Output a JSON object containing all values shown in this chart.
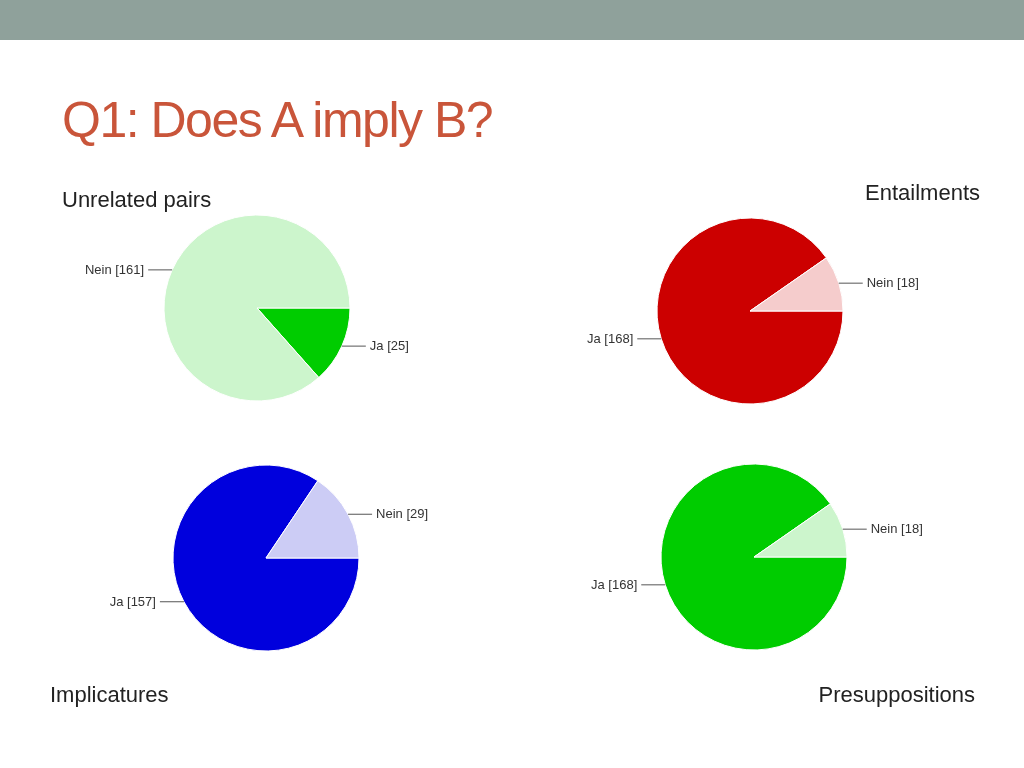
{
  "chart_data": [
    {
      "type": "pie",
      "title": "Unrelated pairs",
      "annotations": [
        "Q1: Does A imply B?"
      ],
      "categories": [
        "Ja",
        "Nein"
      ],
      "values": [
        25,
        161
      ],
      "colors": [
        "#00cc00",
        "#ccf5cc"
      ],
      "value_labels": [
        "[25]",
        "[161]"
      ]
    },
    {
      "type": "pie",
      "title": "Entailments",
      "categories": [
        "Ja",
        "Nein"
      ],
      "values": [
        168,
        18
      ],
      "colors": [
        "#cc0000",
        "#f5cccc"
      ],
      "value_labels": [
        "[168]",
        "[18]"
      ]
    },
    {
      "type": "pie",
      "title": "Implicatures",
      "categories": [
        "Ja",
        "Nein"
      ],
      "values": [
        157,
        29
      ],
      "colors": [
        "#0000dd",
        "#ccccf5"
      ],
      "value_labels": [
        "[157]",
        "[29]"
      ]
    },
    {
      "type": "pie",
      "title": "Presuppositions",
      "categories": [
        "Ja",
        "Nein"
      ],
      "values": [
        168,
        18
      ],
      "colors": [
        "#00cc00",
        "#ccf5cc"
      ],
      "value_labels": [
        "[168]",
        "[18]"
      ]
    }
  ]
}
